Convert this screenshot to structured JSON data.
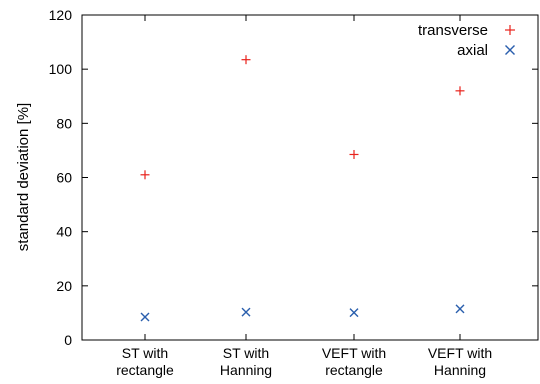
{
  "chart_data": {
    "type": "scatter",
    "categories": [
      "ST with\nrectangle",
      "ST with\nHanning",
      "VEFT with\nrectangle",
      "VEFT with\nHanning"
    ],
    "xlabel": "",
    "ylabel": "standard deviation [%]",
    "ylim": [
      0,
      120
    ],
    "yticks": [
      0,
      20,
      40,
      60,
      80,
      100,
      120
    ],
    "grid": false,
    "legend_position": "top-right",
    "series": [
      {
        "name": "transverse",
        "marker": "plus",
        "color": "#e8221c",
        "values": [
          61,
          103.5,
          68.5,
          92
        ]
      },
      {
        "name": "axial",
        "marker": "cross",
        "color": "#2a5fad",
        "values": [
          8.5,
          10.3,
          10.1,
          11.5
        ]
      }
    ]
  }
}
